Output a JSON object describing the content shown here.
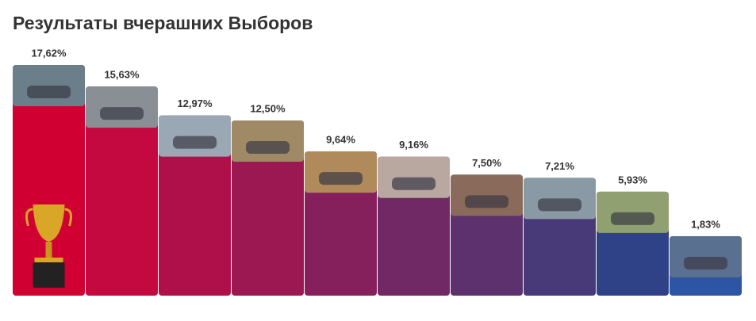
{
  "chart_data": {
    "type": "bar",
    "title": "Результаты вчерашних Выборов",
    "values": [
      17.62,
      15.63,
      12.97,
      12.5,
      9.64,
      9.16,
      7.5,
      7.21,
      5.93,
      1.83
    ],
    "value_labels": [
      "17,62%",
      "15,63%",
      "12,97%",
      "12,50%",
      "9,64%",
      "9,16%",
      "7,50%",
      "7,21%",
      "5,93%",
      "1,83%"
    ],
    "colors": [
      "#d00032",
      "#c40840",
      "#b0104a",
      "#9c1853",
      "#86205c",
      "#712966",
      "#5d316e",
      "#483a78",
      "#304287",
      "#2c56a4"
    ]
  }
}
